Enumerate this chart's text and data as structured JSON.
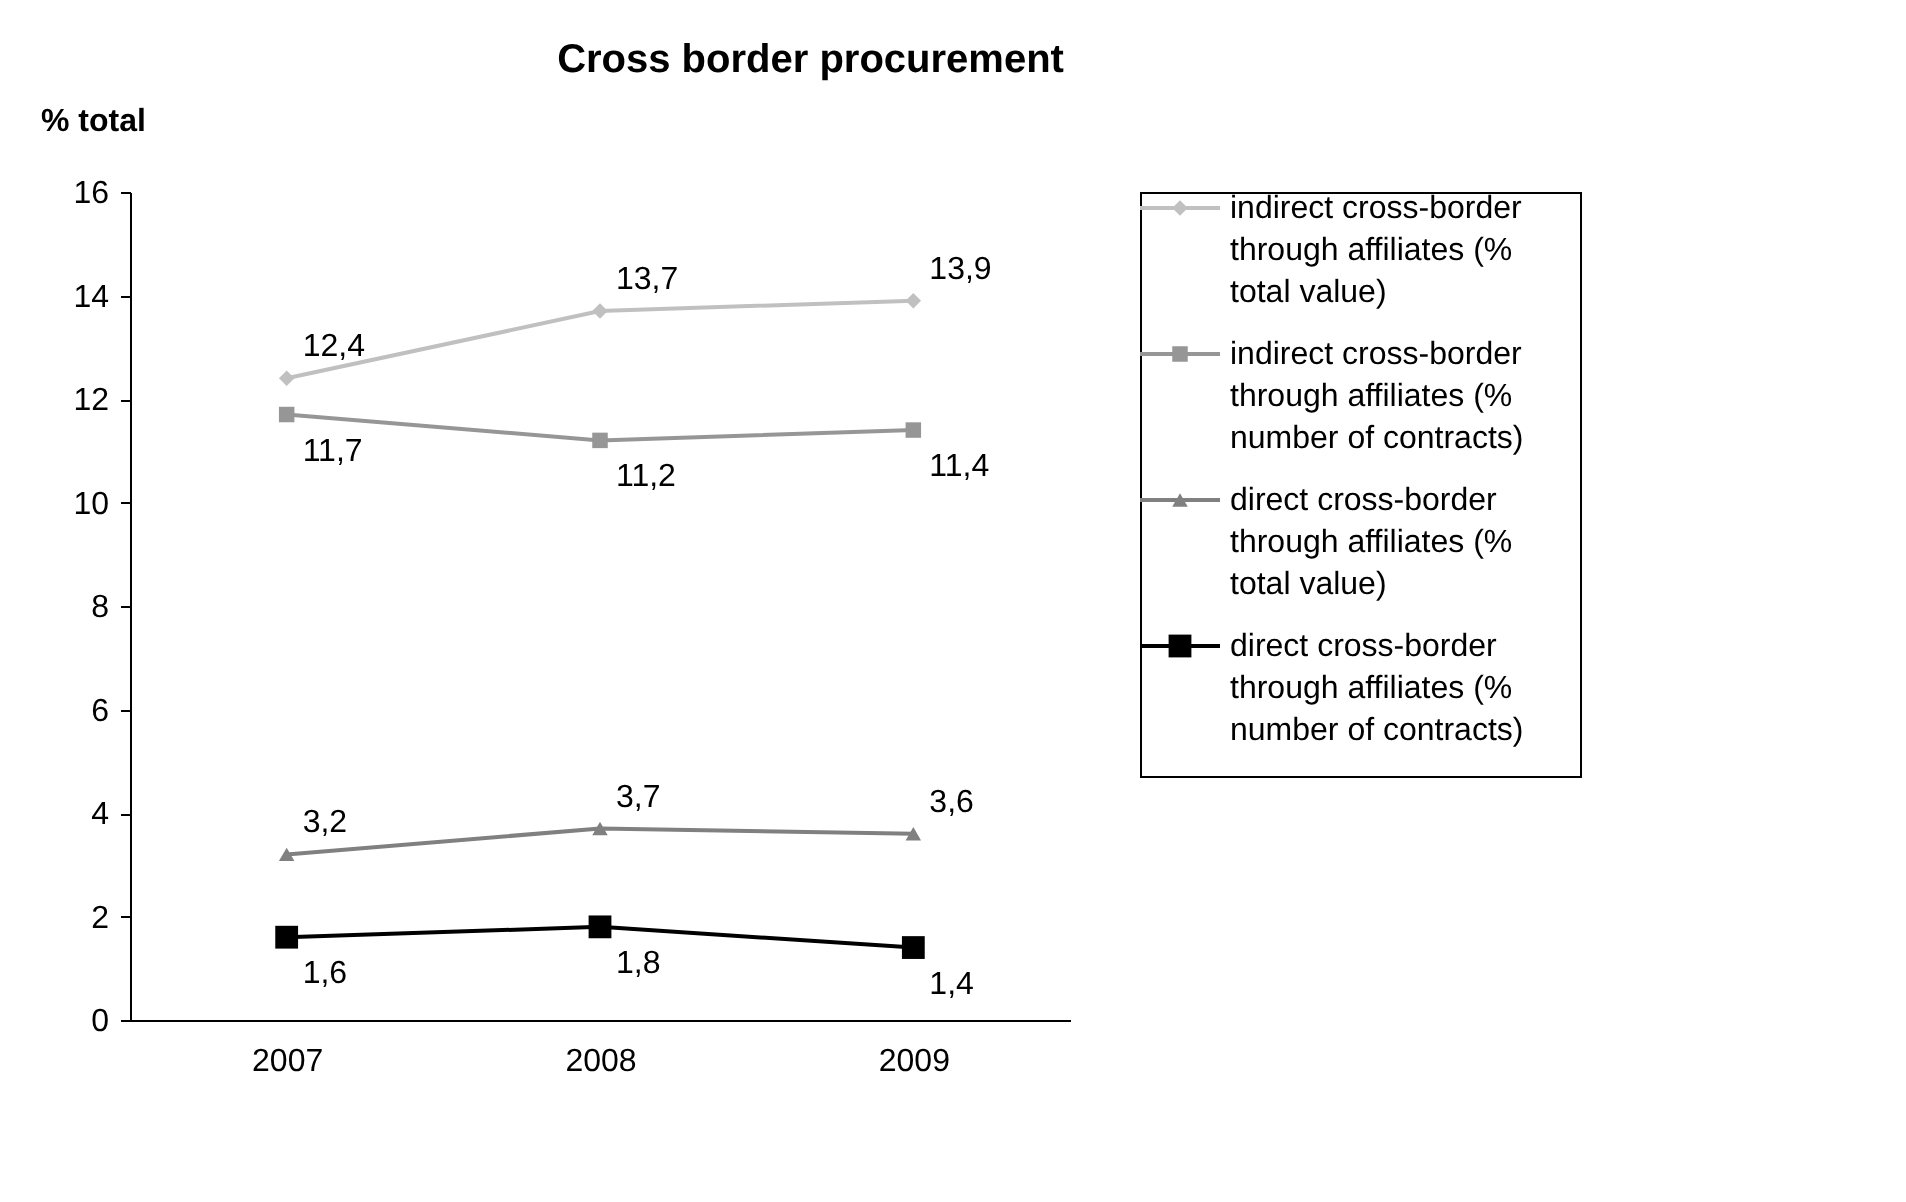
{
  "chart_data": {
    "type": "line",
    "title": "Cross border procurement",
    "ylabel": "% total",
    "categories": [
      "2007",
      "2008",
      "2009"
    ],
    "ylim": [
      0,
      16
    ],
    "yticks": [
      0,
      2,
      4,
      6,
      8,
      10,
      12,
      14,
      16
    ],
    "grid": false,
    "legend": "right",
    "series": [
      {
        "name": "indirect cross-border through affiliates (% total value)",
        "color": "#c0c0c0",
        "marker": "diamond",
        "values": [
          12.4,
          13.7,
          13.9
        ],
        "value_labels": [
          "12,4",
          "13,7",
          "13,9"
        ]
      },
      {
        "name": "indirect cross-border through affiliates (% number of contracts)",
        "color": "#969696",
        "marker": "square",
        "values": [
          11.7,
          11.2,
          11.4
        ],
        "value_labels": [
          "11,7",
          "11,2",
          "11,4"
        ]
      },
      {
        "name": "direct cross-border through affiliates (% total value)",
        "color": "#808080",
        "marker": "triangle",
        "values": [
          3.2,
          3.7,
          3.6
        ],
        "value_labels": [
          "3,2",
          "3,7",
          "3,6"
        ]
      },
      {
        "name": "direct cross-border through affiliates (% number of contracts)",
        "color": "#000000",
        "marker": "square",
        "values": [
          1.6,
          1.8,
          1.4
        ],
        "value_labels": [
          "1,6",
          "1,8",
          "1,4"
        ]
      }
    ]
  }
}
